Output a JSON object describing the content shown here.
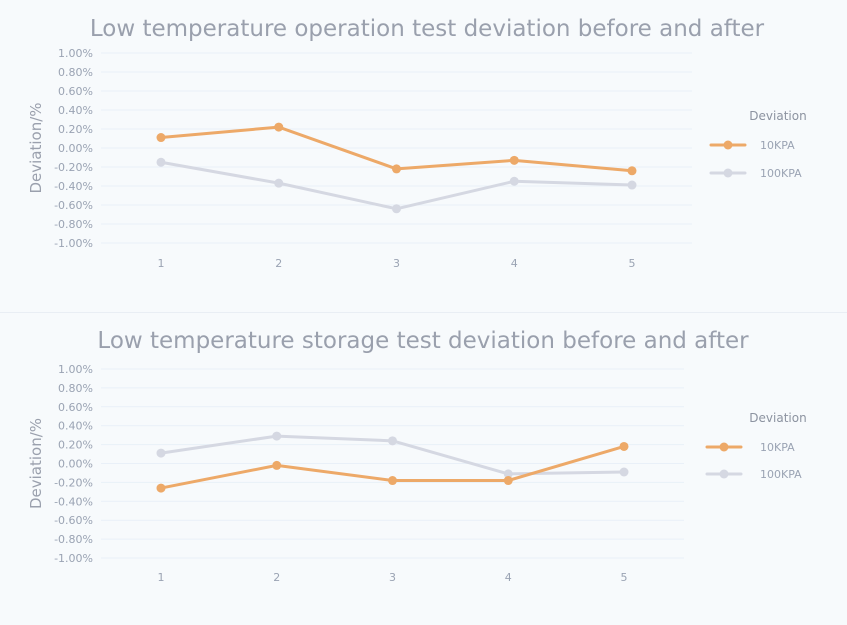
{
  "chart_data": [
    {
      "type": "line",
      "title": "Low temperature operation test deviation before and after",
      "ylabel": "Deviation/%",
      "xlabel": "",
      "categories": [
        "1",
        "2",
        "3",
        "4",
        "5"
      ],
      "yticks": [
        "1.00%",
        "0.80%",
        "0.60%",
        "0.40%",
        "0.20%",
        "0.00%",
        "-0.20%",
        "-0.40%",
        "-0.60%",
        "-0.80%",
        "-1.00%"
      ],
      "ylim": [
        -1.0,
        1.0
      ],
      "legend_title": "Deviation",
      "legend_position": "right",
      "series": [
        {
          "name": "10KPA",
          "color": "#eda968",
          "values": [
            0.11,
            0.22,
            -0.22,
            -0.13,
            -0.24
          ]
        },
        {
          "name": "100KPA",
          "color": "#d5d8e2",
          "values": [
            -0.15,
            -0.37,
            -0.64,
            -0.35,
            -0.39
          ]
        }
      ]
    },
    {
      "type": "line",
      "title": "Low temperature storage test deviation before and after",
      "ylabel": "Deviation/%",
      "xlabel": "",
      "categories": [
        "1",
        "2",
        "3",
        "4",
        "5"
      ],
      "yticks": [
        "1.00%",
        "0.80%",
        "0.60%",
        "0.40%",
        "0.20%",
        "0.00%",
        "-0.20%",
        "-0.40%",
        "-0.60%",
        "-0.80%",
        "-1.00%"
      ],
      "ylim": [
        -1.0,
        1.0
      ],
      "legend_title": "Deviation",
      "legend_position": "right",
      "series": [
        {
          "name": "10KPA",
          "color": "#eda968",
          "values": [
            -0.26,
            -0.02,
            -0.18,
            -0.18,
            0.18
          ]
        },
        {
          "name": "100KPA",
          "color": "#d5d8e2",
          "values": [
            0.11,
            0.29,
            0.24,
            -0.11,
            -0.09
          ]
        }
      ]
    }
  ]
}
